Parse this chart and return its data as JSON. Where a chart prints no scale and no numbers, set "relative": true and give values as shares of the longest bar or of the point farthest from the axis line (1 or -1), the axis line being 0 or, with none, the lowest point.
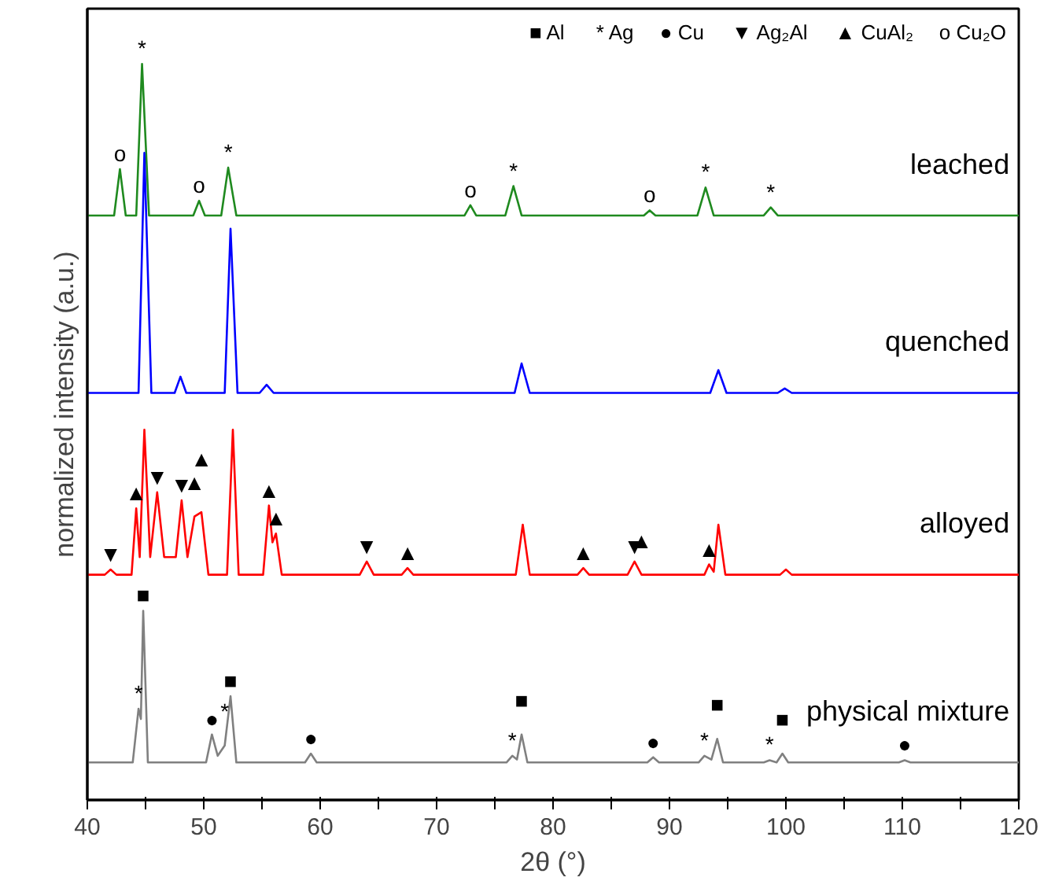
{
  "chart_data": {
    "type": "line",
    "relative": true,
    "xlabel": "2θ (°)",
    "ylabel": "normalized intensity (a.u.)",
    "xlim": [
      40,
      120
    ],
    "xticks": [
      40,
      {
        "value": 45,
        "label": null
      },
      50,
      {
        "value": 55,
        "label": null
      },
      60,
      {
        "value": 65,
        "label": null
      },
      70,
      {
        "value": 75,
        "label": null
      },
      80,
      {
        "value": 85,
        "label": null
      },
      90,
      {
        "value": 95,
        "label": null
      },
      100,
      {
        "value": 105,
        "label": null
      },
      110,
      {
        "value": 115,
        "label": null
      },
      120
    ],
    "grid": false,
    "legend": false,
    "series": [
      {
        "name": "leached",
        "color": "#1f8a1f",
        "x": [
          40,
          42.3,
          42.8,
          43.3,
          44.2,
          44.7,
          45.3,
          49.1,
          49.6,
          50.1,
          51.5,
          52.1,
          52.8,
          72.4,
          72.9,
          73.4,
          75.9,
          76.6,
          77.3,
          87.8,
          88.3,
          88.8,
          92.4,
          93.1,
          93.8,
          98.1,
          98.7,
          99.3,
          120
        ],
        "values": [
          0.794,
          0.794,
          0.857,
          0.794,
          0.794,
          1.0,
          0.794,
          0.794,
          0.814,
          0.794,
          0.794,
          0.859,
          0.794,
          0.794,
          0.808,
          0.794,
          0.794,
          0.834,
          0.794,
          0.794,
          0.801,
          0.794,
          0.794,
          0.832,
          0.794,
          0.794,
          0.805,
          0.794,
          0.794
        ]
      },
      {
        "name": "quenched",
        "color": "#0000ff",
        "x": [
          40,
          44.4,
          44.9,
          45.5,
          47.5,
          48,
          48.5,
          51.8,
          52.3,
          52.9,
          54.8,
          55.4,
          56,
          76.7,
          77.3,
          78,
          93.5,
          94.2,
          94.9,
          99.3,
          99.9,
          100.5,
          120
        ],
        "values": [
          0.553,
          0.553,
          0.879,
          0.553,
          0.553,
          0.575,
          0.553,
          0.553,
          0.776,
          0.553,
          0.553,
          0.564,
          0.553,
          0.553,
          0.593,
          0.553,
          0.553,
          0.584,
          0.553,
          0.553,
          0.559,
          0.553,
          0.553
        ]
      },
      {
        "name": "alloyed",
        "color": "#ff0000",
        "x": [
          40,
          41.5,
          42,
          42.5,
          43.8,
          44.2,
          44.5,
          44.9,
          45.4,
          46,
          46.6,
          47.6,
          48.1,
          48.6,
          49.2,
          49.8,
          50.4,
          52,
          52.5,
          53,
          55.1,
          55.6,
          55.9,
          56.2,
          56.7,
          63.4,
          64,
          64.6,
          67,
          67.5,
          68,
          76.8,
          77.4,
          78,
          82.1,
          82.6,
          83.1,
          86.4,
          87,
          87.6,
          93,
          93.4,
          93.8,
          94.2,
          94.8,
          99.5,
          100,
          100.5,
          120
        ],
        "values": [
          0.306,
          0.306,
          0.313,
          0.306,
          0.306,
          0.396,
          0.33,
          0.503,
          0.33,
          0.418,
          0.33,
          0.33,
          0.407,
          0.33,
          0.385,
          0.391,
          0.306,
          0.306,
          0.503,
          0.306,
          0.306,
          0.4,
          0.35,
          0.362,
          0.306,
          0.306,
          0.324,
          0.306,
          0.306,
          0.315,
          0.306,
          0.306,
          0.374,
          0.306,
          0.306,
          0.315,
          0.306,
          0.306,
          0.324,
          0.306,
          0.306,
          0.32,
          0.31,
          0.374,
          0.306,
          0.306,
          0.313,
          0.306,
          0.306
        ]
      },
      {
        "name": "physical mixture",
        "color": "#808080",
        "x": [
          40,
          43.9,
          44.4,
          44.6,
          44.8,
          45.2,
          50.2,
          50.7,
          51.2,
          51.8,
          52.3,
          52.8,
          58.7,
          59.2,
          59.7,
          76,
          76.5,
          76.9,
          77.3,
          77.8,
          88.1,
          88.6,
          89.1,
          92.5,
          93,
          93.6,
          94.1,
          94.6,
          98.1,
          98.6,
          99.2,
          99.7,
          100.2,
          109.7,
          110.2,
          110.7,
          120
        ],
        "values": [
          0.051,
          0.051,
          0.124,
          0.11,
          0.257,
          0.051,
          0.051,
          0.089,
          0.06,
          0.074,
          0.141,
          0.051,
          0.051,
          0.063,
          0.051,
          0.051,
          0.06,
          0.055,
          0.089,
          0.051,
          0.051,
          0.058,
          0.051,
          0.051,
          0.06,
          0.055,
          0.083,
          0.051,
          0.051,
          0.054,
          0.051,
          0.063,
          0.051,
          0.051,
          0.054,
          0.051,
          0.051
        ]
      }
    ],
    "annotations": [
      "■ Al",
      "* Ag",
      "● Cu",
      "▼ Ag₂Al",
      "▲ CuAl₂",
      "o Cu₂O",
      {
        "text": "o",
        "x": 42.8,
        "y": 0.857
      },
      {
        "text": "*",
        "x": 44.7,
        "y": 1.0
      },
      {
        "text": "o",
        "x": 49.6,
        "y": 0.814
      },
      {
        "text": "*",
        "x": 52.1,
        "y": 0.859
      },
      {
        "text": "o",
        "x": 72.9,
        "y": 0.808
      },
      {
        "text": "*",
        "x": 76.6,
        "y": 0.834
      },
      {
        "text": "o",
        "x": 88.3,
        "y": 0.801
      },
      {
        "text": "*",
        "x": 93.1,
        "y": 0.832
      },
      {
        "text": "*",
        "x": 98.7,
        "y": 0.805
      },
      {
        "text": "▼",
        "x": 42,
        "y": 0.313
      },
      {
        "text": "▲",
        "x": 44.2,
        "y": 0.396
      },
      {
        "text": "▼",
        "x": 46,
        "y": 0.418
      },
      {
        "text": "▼",
        "x": 48.1,
        "y": 0.407
      },
      {
        "text": "▲",
        "x": 49.2,
        "y": 0.385
      },
      {
        "text": "▲",
        "x": 49.8,
        "y": 0.391
      },
      {
        "text": "▲",
        "x": 55.6,
        "y": 0.4
      },
      {
        "text": "▲",
        "x": 56.2,
        "y": 0.362
      },
      {
        "text": "▼",
        "x": 64,
        "y": 0.324
      },
      {
        "text": "▲",
        "x": 67.5,
        "y": 0.315
      },
      {
        "text": "▲",
        "x": 82.6,
        "y": 0.315
      },
      {
        "text": "▼",
        "x": 87,
        "y": 0.324
      },
      {
        "text": "▲",
        "x": 87.6,
        "y": 0.306
      },
      {
        "text": "▲",
        "x": 93.4,
        "y": 0.32
      },
      {
        "text": "■",
        "x": 44.8,
        "y": 0.257
      },
      {
        "text": "*",
        "x": 44.4,
        "y": 0.124
      },
      {
        "text": "●",
        "x": 50.7,
        "y": 0.089
      },
      {
        "text": "*",
        "x": 51.8,
        "y": 0.074
      },
      {
        "text": "■",
        "x": 52.3,
        "y": 0.141
      },
      {
        "text": "●",
        "x": 59.2,
        "y": 0.063
      },
      {
        "text": "*",
        "x": 76.5,
        "y": 0.06
      },
      {
        "text": "■",
        "x": 77.3,
        "y": 0.089
      },
      {
        "text": "●",
        "x": 88.6,
        "y": 0.058
      },
      {
        "text": "*",
        "x": 93,
        "y": 0.06
      },
      {
        "text": "■",
        "x": 94.1,
        "y": 0.083
      },
      {
        "text": "*",
        "x": 98.6,
        "y": 0.054
      },
      {
        "text": "■",
        "x": 99.7,
        "y": 0.063
      },
      {
        "text": "●",
        "x": 110.2,
        "y": 0.054
      }
    ]
  }
}
